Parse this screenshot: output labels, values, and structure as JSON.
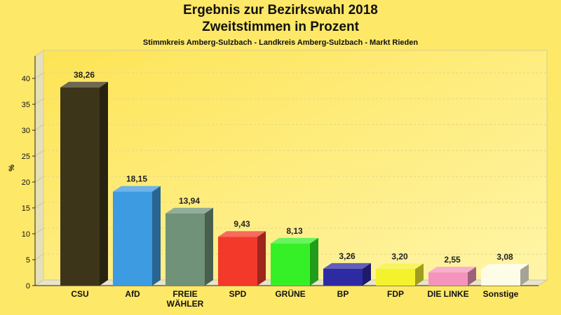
{
  "chart_data": {
    "type": "bar",
    "title": "Ergebnis zur Bezirkswahl 2018",
    "subtitle": "Zweitstimmen in Prozent",
    "subtitle2": "Stimmkreis Amberg-Sulzbach - Landkreis Amberg-Sulzbach - Markt Rieden",
    "ylabel": "%",
    "xlabel": "",
    "ylim": [
      0,
      40
    ],
    "yticks": [
      0,
      5,
      10,
      15,
      20,
      25,
      30,
      35,
      40
    ],
    "grid": true,
    "categories": [
      "CSU",
      "AfD",
      "FREIE WÄHLER",
      "SPD",
      "GRÜNE",
      "BP",
      "FDP",
      "DIE LINKE",
      "Sonstige"
    ],
    "values": [
      38.26,
      18.15,
      13.94,
      9.43,
      8.13,
      3.26,
      3.2,
      2.55,
      3.08
    ],
    "value_labels": [
      "38,26",
      "18,15",
      "13,94",
      "9,43",
      "8,13",
      "3,26",
      "3,20",
      "2,55",
      "3,08"
    ],
    "colors": [
      "#3d3519",
      "#3d9be1",
      "#6f9278",
      "#f3392a",
      "#35f027",
      "#2e2aa3",
      "#f3f22c",
      "#f494bc",
      "#fdfce6"
    ]
  }
}
